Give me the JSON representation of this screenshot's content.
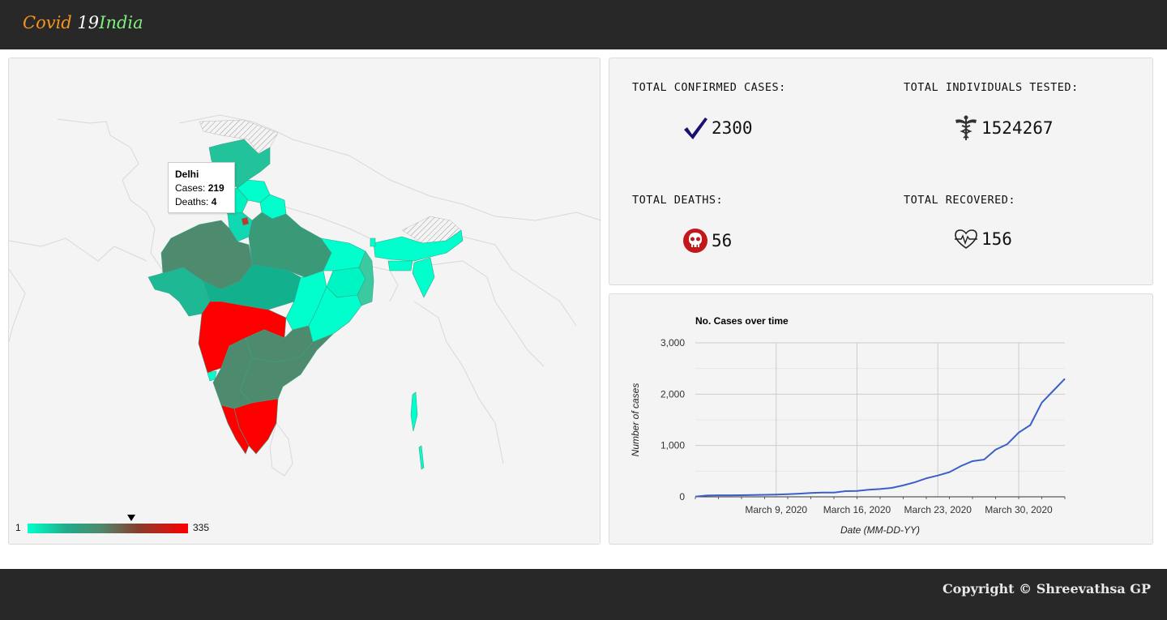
{
  "header": {
    "brand_part1": "Covid ",
    "brand_part2": "19",
    "brand_part3": "India"
  },
  "stats": {
    "confirmed": {
      "label": "TOTAL CONFIRMED CASES:",
      "value": "2300",
      "icon": "checkmark-icon"
    },
    "tested": {
      "label": "TOTAL INDIVIDUALS TESTED:",
      "value": "1524267",
      "icon": "caduceus-icon"
    },
    "deaths": {
      "label": "TOTAL DEATHS:",
      "value": "56",
      "icon": "skull-icon"
    },
    "recovered": {
      "label": "TOTAL RECOVERED:",
      "value": "156",
      "icon": "heartbeat-icon"
    }
  },
  "map": {
    "tooltip": {
      "state": "Delhi",
      "cases_label": "Cases: ",
      "cases": "219",
      "deaths_label": "Deaths: ",
      "deaths": "4"
    },
    "legend": {
      "min": "1",
      "max": "335",
      "marker_value": 219
    },
    "colors": {
      "low": "#00ffcc",
      "mid": "#4d8a6e",
      "high": "#ff0000"
    }
  },
  "chart_data": {
    "type": "line",
    "title": "No. Cases over time",
    "xlabel": "Date (MM-DD-YY)",
    "ylabel": "Number of cases",
    "ylim": [
      0,
      3000
    ],
    "yticks": [
      "0",
      "1,000",
      "2,000",
      "3,000"
    ],
    "xticks": [
      "March 9, 2020",
      "March 16, 2020",
      "March 23, 2020",
      "March 30, 2020"
    ],
    "grid": true,
    "series": [
      {
        "color": "#3b5fc9",
        "x": [
          "2020-03-02",
          "2020-03-03",
          "2020-03-04",
          "2020-03-05",
          "2020-03-06",
          "2020-03-07",
          "2020-03-08",
          "2020-03-09",
          "2020-03-10",
          "2020-03-11",
          "2020-03-12",
          "2020-03-13",
          "2020-03-14",
          "2020-03-15",
          "2020-03-16",
          "2020-03-17",
          "2020-03-18",
          "2020-03-19",
          "2020-03-20",
          "2020-03-21",
          "2020-03-22",
          "2020-03-23",
          "2020-03-24",
          "2020-03-25",
          "2020-03-26",
          "2020-03-27",
          "2020-03-28",
          "2020-03-29",
          "2020-03-30",
          "2020-03-31",
          "2020-04-01",
          "2020-04-02",
          "2020-04-03"
        ],
        "values": [
          5,
          25,
          30,
          30,
          31,
          34,
          39,
          43,
          50,
          62,
          74,
          82,
          84,
          110,
          114,
          137,
          151,
          173,
          223,
          283,
          360,
          415,
          480,
          600,
          694,
          724,
          918,
          1024,
          1251,
          1397,
          1834,
          2069,
          2300
        ]
      }
    ]
  },
  "footer": {
    "copyright": "Copyright © Shreevathsa GP"
  }
}
